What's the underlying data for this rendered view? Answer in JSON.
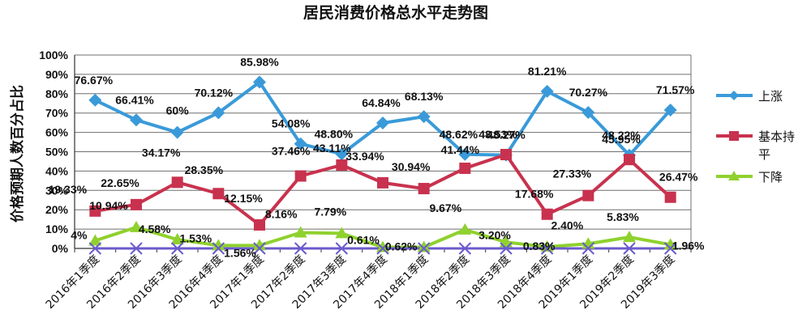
{
  "chart_data": {
    "type": "line",
    "title": "居民消费价格总水平走势图",
    "ylabel": "价格预期人数百分占比",
    "ylim": [
      0,
      100
    ],
    "yticks": [
      "0%",
      "10%",
      "20%",
      "30%",
      "40%",
      "50%",
      "60%",
      "70%",
      "80%",
      "90%",
      "100%"
    ],
    "grid": true,
    "legend_position": "right",
    "categories": [
      "2016年1季度",
      "2016年2季度",
      "2016年3季度",
      "2016年4季度",
      "2017年1季度",
      "2017年2季度",
      "2017年3季度",
      "2017年4季度",
      "2018年1季度",
      "2018年2季度",
      "2018年3季度",
      "2018年4季度",
      "2019年1季度",
      "2019年2季度",
      "2019年3季度"
    ],
    "series": [
      {
        "name": "上涨",
        "color": "#3a9ad9",
        "marker": "diamond",
        "values": [
          76.67,
          66.41,
          60,
          70.12,
          85.98,
          54.08,
          48.8,
          64.84,
          68.13,
          48.62,
          48.27,
          81.21,
          70.27,
          48.22,
          71.57
        ],
        "labels": [
          "76.67%",
          "66.41%",
          "60%",
          "70.12%",
          "85.98%",
          "54.08%",
          "48.80%",
          "64.84%",
          "68.13%",
          "48.62%",
          "48.27%",
          "81.21%",
          "70.27%",
          "48.22%",
          "71.57%"
        ]
      },
      {
        "name": "基本持平",
        "color": "#c8324e",
        "marker": "square",
        "values": [
          19.33,
          22.65,
          34.17,
          28.35,
          12.15,
          37.46,
          43.11,
          33.94,
          30.94,
          41.44,
          48.53,
          17.68,
          27.33,
          45.95,
          26.47
        ],
        "labels": [
          "19.33%",
          "22.65%",
          "34.17%",
          "28.35%",
          "12.15%",
          "37.46%",
          "43.11%",
          "33.94%",
          "30.94%",
          "41.44%",
          "48.53%",
          "17.68%",
          "27.33%",
          "45.95%",
          "26.47%"
        ]
      },
      {
        "name": "下降",
        "color": "#8fd12e",
        "marker": "triangle",
        "values": [
          4,
          10.94,
          4.58,
          1.53,
          1.56,
          8.16,
          7.79,
          0.61,
          0.62,
          9.67,
          3.2,
          0.83,
          2.4,
          5.83,
          1.96
        ],
        "labels": [
          "4%",
          "10.94%",
          "4.58%",
          "1.53%",
          "1.56%",
          "8.16%",
          "7.79%",
          "0.61%",
          "0.62%",
          "9.67%",
          "3.20%",
          "0.83%",
          "2.40%",
          "5.83%",
          "1.96%"
        ]
      },
      {
        "name": "",
        "color": "#6a5acd",
        "marker": "x",
        "values": [
          0,
          0,
          0,
          0,
          0,
          0,
          0,
          0,
          0,
          0,
          0,
          0,
          0,
          0,
          0
        ]
      }
    ],
    "legend": [
      "上涨",
      "基本持平",
      "下降"
    ]
  }
}
